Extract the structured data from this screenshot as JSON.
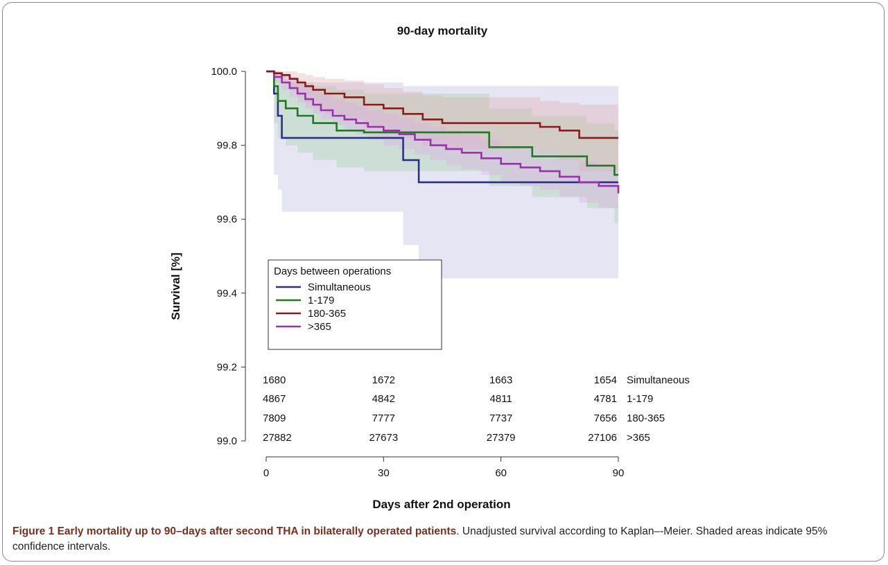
{
  "chart_data": {
    "type": "line",
    "title": "90-day mortality",
    "xlabel": "Days after 2nd operation",
    "ylabel": "Survival [%]",
    "xlim": [
      0,
      90
    ],
    "ylim": [
      99.0,
      100.0
    ],
    "x_ticks": [
      0,
      30,
      60,
      90
    ],
    "y_ticks": [
      "99.0",
      "99.2",
      "99.4",
      "99.6",
      "99.8",
      "100.0"
    ],
    "grid": false,
    "legend": {
      "title": "Days between operations",
      "position": "lower-left",
      "entries": [
        "Simultaneous",
        "1-179",
        "180-365",
        ">365"
      ]
    },
    "series": [
      {
        "name": "Simultaneous",
        "color": "#2b2f8a",
        "band_color": "#b4b4e0",
        "x": [
          0,
          2,
          3,
          4,
          35,
          39,
          90
        ],
        "y": [
          100.0,
          99.94,
          99.88,
          99.82,
          99.76,
          99.7,
          99.7
        ],
        "ci_lower": [
          100.0,
          99.72,
          99.68,
          99.62,
          99.53,
          99.44,
          99.44
        ],
        "ci_upper": [
          100.0,
          100.0,
          99.99,
          99.97,
          99.96,
          99.96,
          99.96
        ]
      },
      {
        "name": "1-179",
        "color": "#1e7a1e",
        "band_color": "#9fd09f",
        "x": [
          0,
          2,
          3,
          5,
          8,
          12,
          18,
          25,
          57,
          68,
          82,
          89,
          90
        ],
        "y": [
          100.0,
          99.96,
          99.92,
          99.9,
          99.88,
          99.86,
          99.84,
          99.835,
          99.795,
          99.77,
          99.745,
          99.72,
          99.72
        ],
        "ci_lower": [
          100.0,
          99.86,
          99.82,
          99.8,
          99.78,
          99.76,
          99.74,
          99.73,
          99.69,
          99.66,
          99.63,
          99.59,
          99.59
        ],
        "ci_upper": [
          100.0,
          100.0,
          99.99,
          99.98,
          99.97,
          99.96,
          99.95,
          99.94,
          99.9,
          99.88,
          99.86,
          99.84,
          99.84
        ]
      },
      {
        "name": "180-365",
        "color": "#8b1a1a",
        "band_color": "#e0a8a8",
        "x": [
          0,
          2,
          4,
          6,
          8,
          10,
          12,
          15,
          20,
          25,
          30,
          35,
          40,
          45,
          70,
          75,
          80,
          90
        ],
        "y": [
          100.0,
          99.995,
          99.99,
          99.98,
          99.97,
          99.96,
          99.95,
          99.94,
          99.93,
          99.91,
          99.9,
          99.885,
          99.87,
          99.86,
          99.85,
          99.84,
          99.82,
          99.82
        ],
        "ci_lower": [
          100.0,
          99.985,
          99.97,
          99.95,
          99.93,
          99.915,
          99.9,
          99.885,
          99.87,
          99.85,
          99.83,
          99.82,
          99.8,
          99.79,
          99.78,
          99.76,
          99.73,
          99.73
        ],
        "ci_upper": [
          100.0,
          100.0,
          100.0,
          100.0,
          99.995,
          99.99,
          99.985,
          99.98,
          99.975,
          99.965,
          99.955,
          99.945,
          99.935,
          99.93,
          99.92,
          99.915,
          99.91,
          99.91
        ]
      },
      {
        "name": ">365",
        "color": "#9b2fae",
        "band_color": "#dba8e3",
        "x": [
          0,
          2,
          4,
          6,
          8,
          10,
          12,
          14,
          17,
          20,
          23,
          26,
          30,
          34,
          38,
          42,
          46,
          50,
          55,
          60,
          65,
          70,
          75,
          80,
          85,
          90
        ],
        "y": [
          100.0,
          99.985,
          99.97,
          99.955,
          99.94,
          99.925,
          99.91,
          99.895,
          99.88,
          99.87,
          99.86,
          99.85,
          99.84,
          99.83,
          99.815,
          99.8,
          99.79,
          99.78,
          99.765,
          99.75,
          99.74,
          99.73,
          99.715,
          99.7,
          99.69,
          99.67
        ],
        "ci_lower": [
          100.0,
          99.97,
          99.95,
          99.93,
          99.915,
          99.9,
          99.885,
          99.87,
          99.855,
          99.84,
          99.83,
          99.815,
          99.8,
          99.79,
          99.775,
          99.76,
          99.745,
          99.735,
          99.72,
          99.7,
          99.69,
          99.68,
          99.66,
          99.645,
          99.63,
          99.61
        ],
        "ci_upper": [
          100.0,
          100.0,
          99.995,
          99.985,
          99.975,
          99.96,
          99.95,
          99.94,
          99.925,
          99.915,
          99.905,
          99.895,
          99.885,
          99.875,
          99.86,
          99.85,
          99.84,
          99.83,
          99.815,
          99.8,
          99.79,
          99.78,
          99.77,
          99.755,
          99.745,
          99.735
        ]
      }
    ],
    "risk_table": {
      "columns_x": [
        0,
        30,
        60,
        90
      ],
      "rows": [
        {
          "label": "Simultaneous",
          "values": [
            "1680",
            "1672",
            "1663",
            "1654"
          ]
        },
        {
          "label": "1-179",
          "values": [
            "4867",
            "4842",
            "4811",
            "4781"
          ]
        },
        {
          "label": "180-365",
          "values": [
            "7809",
            "7777",
            "7737",
            "7656"
          ]
        },
        {
          "label": ">365",
          "values": [
            "27882",
            "27673",
            "27379",
            "27106"
          ]
        }
      ]
    }
  },
  "caption": {
    "label": "Figure 1 Early mortality up to 90–days after second THA in bilaterally operated patients",
    "text": ". Unadjusted survival according to Kaplan–-Meier. Shaded areas indicate 95% confidence intervals."
  }
}
